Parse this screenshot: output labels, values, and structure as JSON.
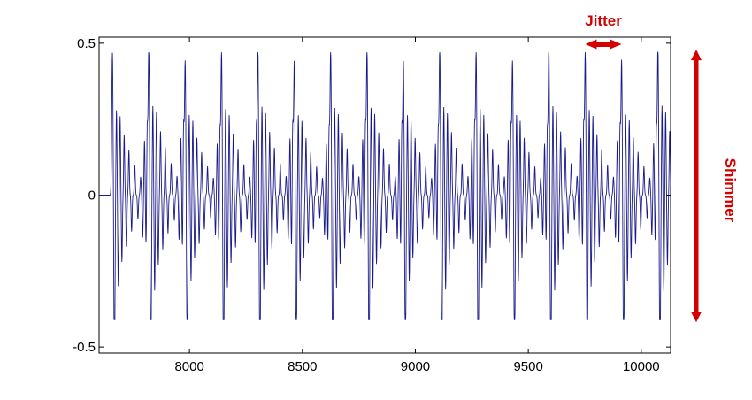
{
  "chart_data": {
    "type": "line",
    "title": "",
    "xlabel": "",
    "ylabel": "",
    "xlim": [
      7600,
      10130
    ],
    "ylim": [
      -0.52,
      0.52
    ],
    "grid": false,
    "x_ticks": [
      8000,
      8500,
      9000,
      9500,
      10000
    ],
    "y_ticks": [
      -0.5,
      0,
      0.5
    ],
    "x_tick_labels": [
      "8000",
      "8500",
      "9000",
      "9500",
      "10000"
    ],
    "y_tick_labels": [
      "-0.5",
      "0",
      "0.5"
    ],
    "series": [
      {
        "line_color": "#1a1a8c",
        "period_samples": 161,
        "peak_positions": [
          7659,
          7820,
          7981,
          8142,
          8303,
          8464,
          8625,
          8786,
          8947,
          9108,
          9269,
          9430,
          9591,
          9752,
          9913,
          10074
        ],
        "max_value": 0.47,
        "min_value": -0.41
      }
    ],
    "annotations": [
      {
        "label": "Jitter",
        "color": "#d40000",
        "orientation": "horizontal",
        "x_range": [
          9752,
          9913
        ]
      },
      {
        "label": "Shimmer",
        "color": "#d40000",
        "orientation": "vertical",
        "y_range": [
          -0.41,
          0.47
        ]
      }
    ]
  }
}
